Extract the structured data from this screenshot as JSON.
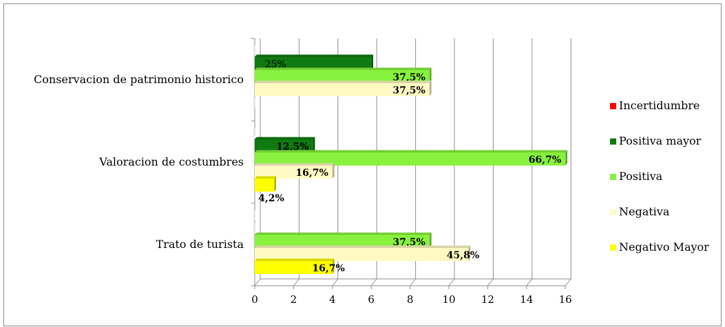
{
  "chart_data": {
    "type": "bar",
    "orientation": "horizontal",
    "categories": [
      "Conservacion de patrimonio historico",
      "Valoracion de costumbres",
      "Trato de turista"
    ],
    "xlim": [
      0,
      16
    ],
    "xticks": [
      "0",
      "2",
      "4",
      "6",
      "8",
      "10",
      "12",
      "14",
      "16"
    ],
    "grid": true,
    "legend_position": "right",
    "series": [
      {
        "name": "Incertidumbre",
        "color": "#ff0000",
        "values": [
          0,
          0,
          0
        ],
        "labels": [
          "",
          "",
          ""
        ]
      },
      {
        "name": "Positiva mayor",
        "color": "#0f7a10",
        "values": [
          6,
          3,
          0
        ],
        "labels": [
          "25%",
          "12,5%",
          ""
        ]
      },
      {
        "name": "Positiva",
        "color": "#88f23e",
        "values": [
          9,
          16,
          9
        ],
        "labels": [
          "37,5%",
          "66,7%",
          "37,5%"
        ]
      },
      {
        "name": "Negativa",
        "color": "#fffac4",
        "values": [
          9,
          4,
          11
        ],
        "labels": [
          "37,5%",
          "16,7%",
          "45,8%"
        ]
      },
      {
        "name": "Negativo Mayor",
        "color": "#ffff00",
        "values": [
          0,
          1,
          4
        ],
        "labels": [
          "",
          "4,2%",
          "16,7%"
        ]
      }
    ]
  }
}
